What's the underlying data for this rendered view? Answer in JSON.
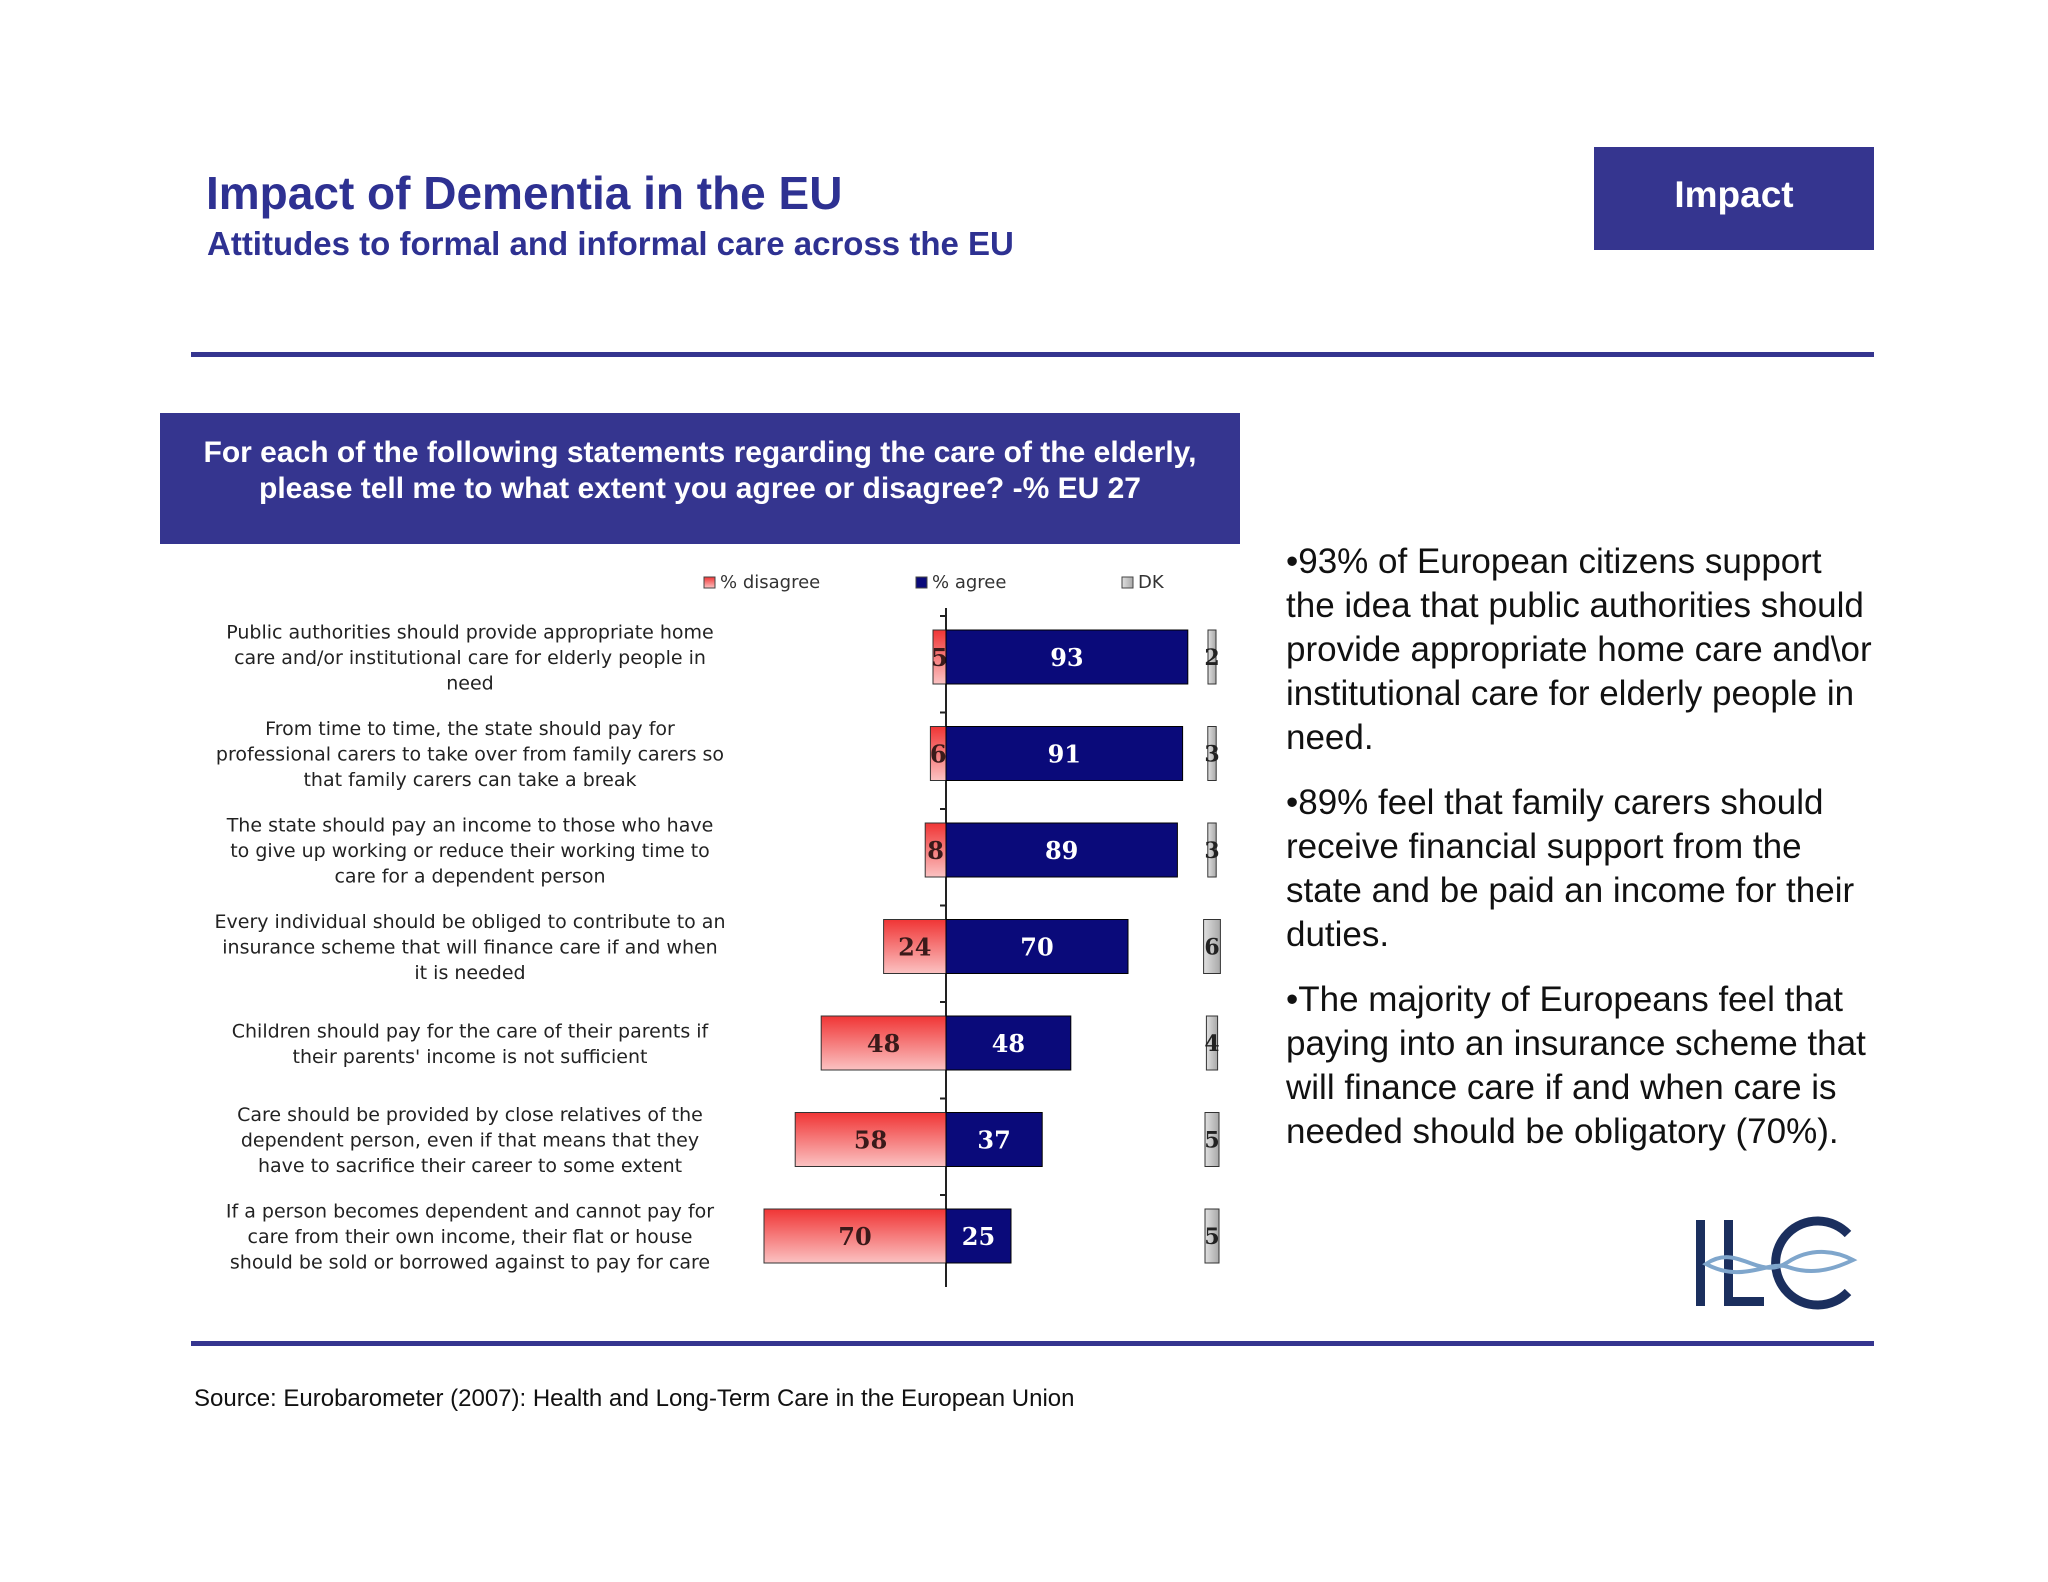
{
  "header": {
    "title": "Impact of Dementia in the EU",
    "subtitle": "Attitudes to formal and informal care across the EU",
    "badge": "Impact"
  },
  "question": {
    "line1": "For each of the following statements regarding the care of the elderly,",
    "line2": "please tell me to what extent you agree or disagree? -% EU 27"
  },
  "chart_data": {
    "type": "bar",
    "orientation": "horizontal-diverging",
    "legend": {
      "position": "top",
      "entries": [
        {
          "key": "disagree",
          "label": "% disagree",
          "color": "#f26a6a"
        },
        {
          "key": "agree",
          "label": "% agree",
          "color": "#0a0a7a"
        },
        {
          "key": "dk",
          "label": "DK",
          "color": "#c0c0c0"
        }
      ]
    },
    "grid": false,
    "xlim": [
      -100,
      100
    ],
    "categories": [
      [
        "Public authorities should provide appropriate home",
        "care and/or institutional care for elderly people in",
        "need"
      ],
      [
        "From time to time, the state should pay for",
        "professional carers to take over from family carers so",
        "that family carers can take a break"
      ],
      [
        "The state should pay an income to those who have",
        "to give up working or reduce their working time to",
        "care for a dependent person"
      ],
      [
        "Every individual should be obliged to contribute to an",
        "insurance scheme that will finance care if and when",
        "it is needed"
      ],
      [
        "Children should pay for the care of their parents if",
        "their parents' income is not sufficient"
      ],
      [
        "Care should be provided by close relatives of the",
        "dependent person, even if that means that they",
        "have to sacrifice their career to some extent"
      ],
      [
        "If a person becomes dependent and cannot pay for",
        "care from their own income, their flat or house",
        "should be sold or borrowed against to pay for care"
      ]
    ],
    "series": [
      {
        "name": "% disagree",
        "values": [
          5,
          6,
          8,
          24,
          48,
          58,
          70
        ]
      },
      {
        "name": "% agree",
        "values": [
          93,
          91,
          89,
          70,
          48,
          37,
          25
        ]
      },
      {
        "name": "DK",
        "values": [
          2,
          3,
          3,
          6,
          4,
          5,
          5
        ]
      }
    ]
  },
  "bullets": [
    "•93% of European citizens support the idea that public authorities should provide appropriate home care and\\or institutional care for elderly people in need.",
    "•89% feel that family carers should receive financial support from the state and be paid an income for their duties.",
    "•The majority of Europeans feel that paying into an insurance scheme that will finance care if and when care is needed should be obligatory (70%)."
  ],
  "logo": {
    "text": "ILC",
    "colors": {
      "navy": "#1b2f5e",
      "accent": "#7fa6cc"
    }
  },
  "source": "Source: Eurobarometer (2007): Health and Long-Term Care in the European Union"
}
